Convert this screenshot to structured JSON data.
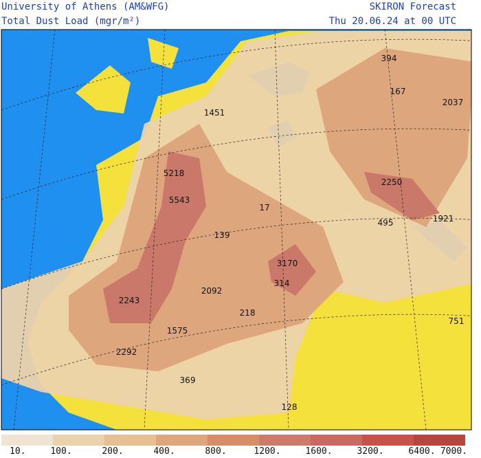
{
  "header": {
    "title_left": "University of Athens (AM&WFG)",
    "subtitle_left": "Total Dust Load (mgr/m²)",
    "title_right": "SKIRON Forecast",
    "subtitle_right": "Thu 20.06.24 at 00 UTC"
  },
  "map_labels": [
    "394",
    "167",
    "2037",
    "1451",
    "5218",
    "5543",
    "17",
    "2250",
    "495",
    "1921",
    "139",
    "3170",
    "314",
    "2092",
    "2243",
    "218",
    "751",
    "1575",
    "2292",
    "369",
    "128"
  ],
  "colorbar": {
    "labels": [
      "10.",
      "100.",
      "200.",
      "400.",
      "800.",
      "1200.",
      "1600.",
      "3200.",
      "6400.",
      "7000."
    ],
    "colors": [
      "#efe4d2",
      "#ebd2ad",
      "#e6bf93",
      "#dea67c",
      "#d78e68",
      "#cc7a6a",
      "#c96962",
      "#c8524b",
      "#b9453f"
    ]
  }
}
